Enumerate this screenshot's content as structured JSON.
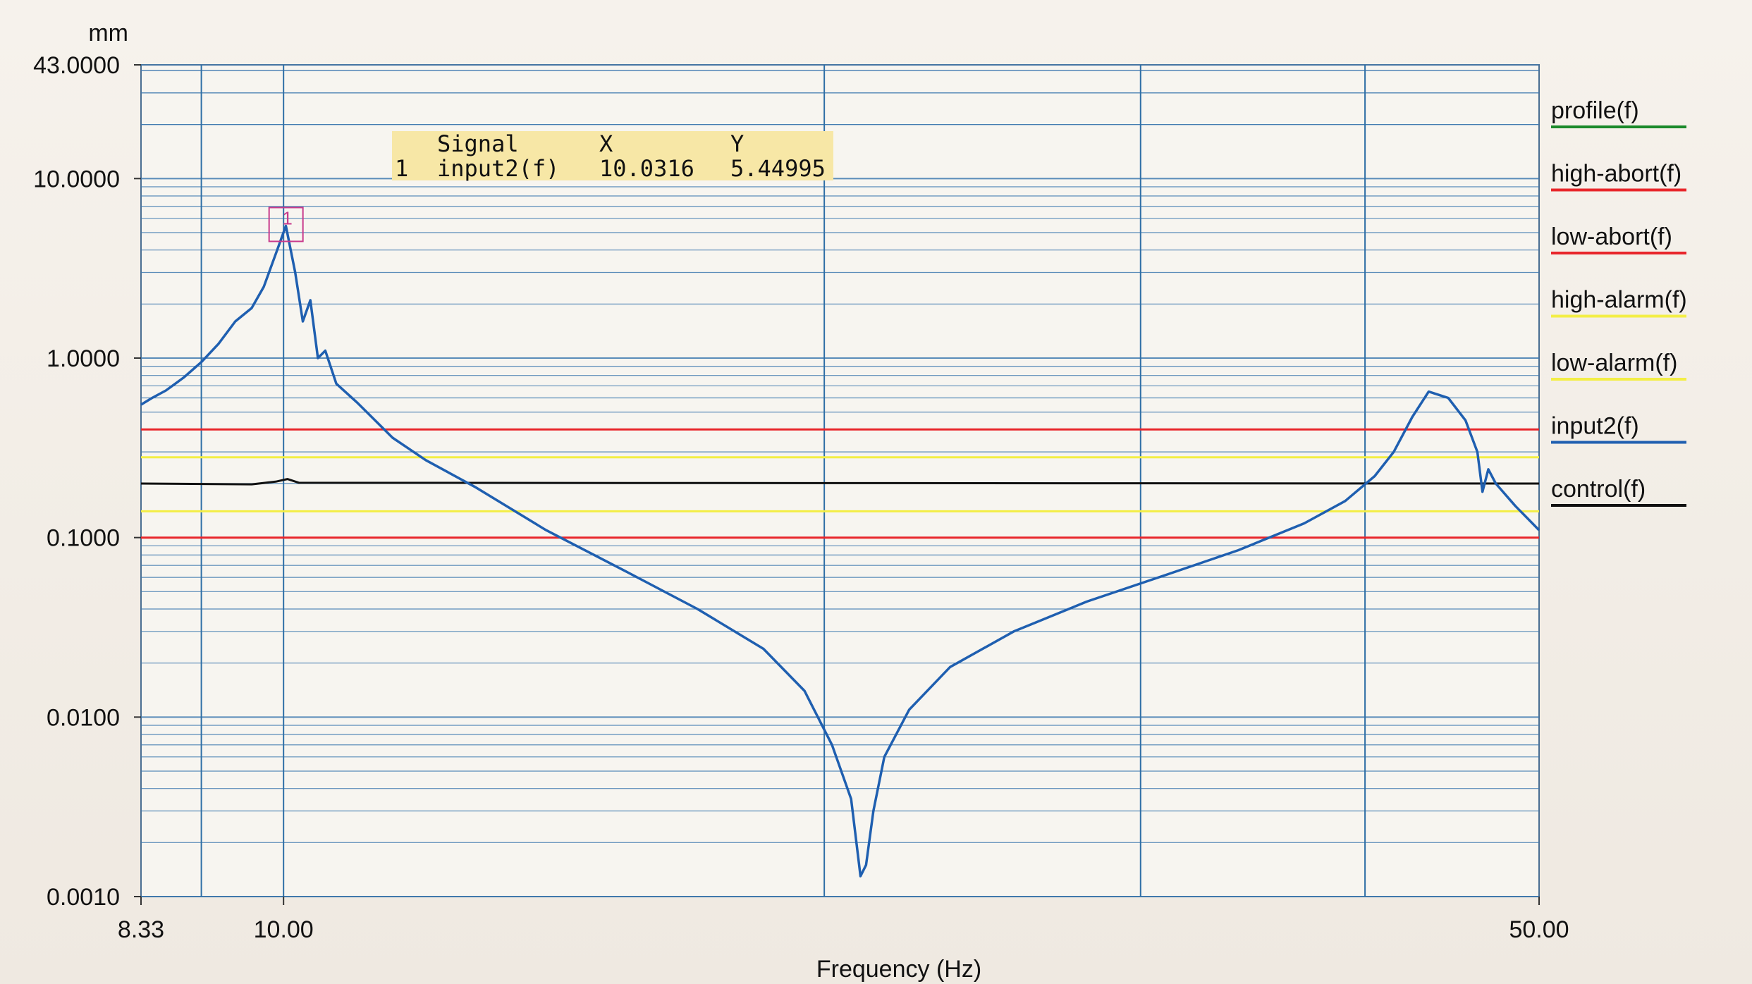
{
  "chart_data": {
    "type": "line",
    "y_unit": "mm",
    "xlabel": "Frequency (Hz)",
    "x_scale": "log",
    "y_scale": "log",
    "xlim": [
      8.33,
      50.0
    ],
    "ylim": [
      0.001,
      43.0
    ],
    "x_tick_labels": [
      "8.33",
      "10.00",
      "50.00"
    ],
    "y_tick_labels": [
      "43.0000",
      "10.0000",
      "1.0000",
      "0.1000",
      "0.0100",
      "0.0010"
    ],
    "grid": true,
    "legend_placement": "right",
    "series": [
      {
        "name": "profile(f)",
        "color": "#1a8a2a",
        "points": []
      },
      {
        "name": "high-abort(f)",
        "color": "#e8262b",
        "points": [
          [
            8.33,
            0.4
          ],
          [
            50.0,
            0.4
          ]
        ]
      },
      {
        "name": "low-abort(f)",
        "color": "#e8262b",
        "points": [
          [
            8.33,
            0.1
          ],
          [
            50.0,
            0.1
          ]
        ]
      },
      {
        "name": "high-alarm(f)",
        "color": "#f3ee45",
        "points": [
          [
            8.33,
            0.28
          ],
          [
            50.0,
            0.28
          ]
        ]
      },
      {
        "name": "low-alarm(f)",
        "color": "#f3ee45",
        "points": [
          [
            8.33,
            0.14
          ],
          [
            50.0,
            0.14
          ]
        ]
      },
      {
        "name": "input2(f)",
        "color": "#1f5fb0",
        "points": [
          [
            8.33,
            0.55
          ],
          [
            8.45,
            0.6
          ],
          [
            8.6,
            0.66
          ],
          [
            8.8,
            0.78
          ],
          [
            9.0,
            0.95
          ],
          [
            9.2,
            1.2
          ],
          [
            9.4,
            1.6
          ],
          [
            9.6,
            1.9
          ],
          [
            9.75,
            2.5
          ],
          [
            9.9,
            3.8
          ],
          [
            10.03,
            5.45
          ],
          [
            10.15,
            3.0
          ],
          [
            10.25,
            1.6
          ],
          [
            10.35,
            2.1
          ],
          [
            10.45,
            1.0
          ],
          [
            10.55,
            1.1
          ],
          [
            10.7,
            0.72
          ],
          [
            11.0,
            0.56
          ],
          [
            11.5,
            0.36
          ],
          [
            12.0,
            0.27
          ],
          [
            12.8,
            0.19
          ],
          [
            14.0,
            0.11
          ],
          [
            15.5,
            0.065
          ],
          [
            17.0,
            0.04
          ],
          [
            18.5,
            0.024
          ],
          [
            19.5,
            0.014
          ],
          [
            20.2,
            0.007
          ],
          [
            20.7,
            0.0035
          ],
          [
            20.95,
            0.0013
          ],
          [
            21.1,
            0.0015
          ],
          [
            21.3,
            0.003
          ],
          [
            21.6,
            0.006
          ],
          [
            22.3,
            0.011
          ],
          [
            23.5,
            0.019
          ],
          [
            25.5,
            0.03
          ],
          [
            28.0,
            0.044
          ],
          [
            31.0,
            0.062
          ],
          [
            34.0,
            0.085
          ],
          [
            37.0,
            0.12
          ],
          [
            39.0,
            0.16
          ],
          [
            40.5,
            0.22
          ],
          [
            41.5,
            0.3
          ],
          [
            42.5,
            0.47
          ],
          [
            43.4,
            0.65
          ],
          [
            44.5,
            0.6
          ],
          [
            45.5,
            0.45
          ],
          [
            46.2,
            0.3
          ],
          [
            46.5,
            0.18
          ],
          [
            46.85,
            0.24
          ],
          [
            47.3,
            0.2
          ],
          [
            48.5,
            0.15
          ],
          [
            50.0,
            0.11
          ]
        ]
      },
      {
        "name": "control(f)",
        "color": "#111111",
        "points": [
          [
            8.33,
            0.2
          ],
          [
            9.6,
            0.198
          ],
          [
            9.9,
            0.205
          ],
          [
            10.05,
            0.212
          ],
          [
            10.2,
            0.202
          ],
          [
            50.0,
            0.2
          ]
        ]
      }
    ],
    "cursor_table": {
      "headers": [
        "Signal",
        "X",
        "Y"
      ],
      "rows": [
        [
          "1",
          "input2(f)",
          "10.0316",
          "5.44995"
        ]
      ]
    },
    "marker": {
      "label": "1",
      "x": 10.0316,
      "y": 5.44995
    }
  }
}
